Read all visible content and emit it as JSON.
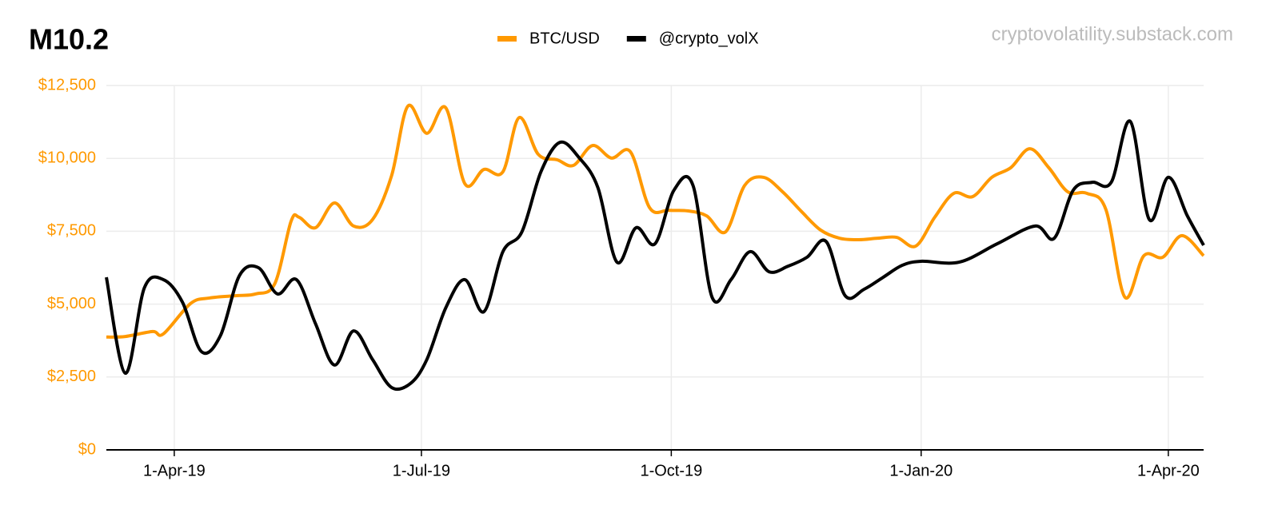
{
  "chart_data": {
    "type": "line",
    "title": "M10.2",
    "source": "cryptovolatility.substack.com",
    "xlim": [
      "7-Mar-19",
      "14-Apr-20"
    ],
    "xticks": [
      "1-Apr-19",
      "1-Jul-19",
      "1-Oct-19",
      "1-Jan-20",
      "1-Apr-20"
    ],
    "ylim": [
      0,
      12500
    ],
    "yticks": [
      {
        "value": 0,
        "label": "$0"
      },
      {
        "value": 2500,
        "label": "$2,500"
      },
      {
        "value": 5000,
        "label": "$5,000"
      },
      {
        "value": 7500,
        "label": "$7,500"
      },
      {
        "value": 10000,
        "label": "$10,000"
      },
      {
        "value": 12500,
        "label": "$12,500"
      }
    ],
    "grid": true,
    "legend": "top",
    "series": [
      {
        "name": "BTC/USD",
        "color": "#ff9900",
        "x": [
          "7-Mar-19",
          "14-Mar-19",
          "24-Mar-19",
          "28-Mar-19",
          "7-Apr-19",
          "14-Apr-19",
          "24-Apr-19",
          "1-May-19",
          "8-May-19",
          "14-May-19",
          "17-May-19",
          "23-May-19",
          "30-May-19",
          "6-Jun-19",
          "13-Jun-19",
          "20-Jun-19",
          "26-Jun-19",
          "3-Jul-19",
          "10-Jul-19",
          "17-Jul-19",
          "24-Jul-19",
          "31-Jul-19",
          "6-Aug-19",
          "13-Aug-19",
          "20-Aug-19",
          "26-Aug-19",
          "2-Sep-19",
          "9-Sep-19",
          "16-Sep-19",
          "23-Sep-19",
          "30-Sep-19",
          "7-Oct-19",
          "14-Oct-19",
          "21-Oct-19",
          "28-Oct-19",
          "4-Nov-19",
          "11-Nov-19",
          "18-Nov-19",
          "25-Nov-19",
          "2-Dec-19",
          "9-Dec-19",
          "16-Dec-19",
          "23-Dec-19",
          "30-Dec-19",
          "6-Jan-20",
          "13-Jan-20",
          "20-Jan-20",
          "27-Jan-20",
          "3-Feb-20",
          "10-Feb-20",
          "17-Feb-20",
          "24-Feb-20",
          "2-Mar-20",
          "9-Mar-20",
          "16-Mar-20",
          "23-Mar-20",
          "30-Mar-20",
          "6-Apr-20",
          "14-Apr-20"
        ],
        "values": [
          3870,
          3890,
          4060,
          3980,
          5020,
          5210,
          5290,
          5350,
          5700,
          7840,
          7980,
          7620,
          8470,
          7680,
          7900,
          9400,
          11790,
          10860,
          11730,
          9130,
          9620,
          9540,
          11400,
          10140,
          9950,
          9760,
          10440,
          10010,
          10220,
          8310,
          8220,
          8200,
          8030,
          7480,
          9070,
          9350,
          8850,
          8170,
          7540,
          7260,
          7210,
          7260,
          7290,
          6990,
          7980,
          8800,
          8690,
          9350,
          9680,
          10330,
          9680,
          8850,
          8800,
          8250,
          5240,
          6660,
          6610,
          7350,
          6660
        ]
      },
      {
        "name": "@crypto_volX",
        "color": "#000000",
        "x": [
          "7-Mar-19",
          "14-Mar-19",
          "21-Mar-19",
          "28-Mar-19",
          "4-Apr-19",
          "11-Apr-19",
          "18-Apr-19",
          "25-Apr-19",
          "2-May-19",
          "9-May-19",
          "16-May-19",
          "23-May-19",
          "30-May-19",
          "6-Jun-19",
          "13-Jun-19",
          "20-Jun-19",
          "27-Jun-19",
          "3-Jul-19",
          "10-Jul-19",
          "17-Jul-19",
          "24-Jul-19",
          "31-Jul-19",
          "7-Aug-19",
          "14-Aug-19",
          "21-Aug-19",
          "28-Aug-19",
          "4-Sep-19",
          "11-Sep-19",
          "18-Sep-19",
          "25-Sep-19",
          "2-Oct-19",
          "9-Oct-19",
          "16-Oct-19",
          "23-Oct-19",
          "30-Oct-19",
          "6-Nov-19",
          "13-Nov-19",
          "20-Nov-19",
          "27-Nov-19",
          "4-Dec-19",
          "11-Dec-19",
          "18-Dec-19",
          "25-Dec-19",
          "1-Jan-20",
          "15-Jan-20",
          "29-Jan-20",
          "12-Feb-20",
          "19-Feb-20",
          "26-Feb-20",
          "4-Mar-20",
          "11-Mar-20",
          "18-Mar-20",
          "25-Mar-20",
          "1-Apr-20",
          "8-Apr-20",
          "14-Apr-20"
        ],
        "values": [
          5920,
          2630,
          5560,
          5840,
          5070,
          3370,
          3920,
          5980,
          6250,
          5350,
          5840,
          4330,
          2910,
          4080,
          3100,
          2140,
          2280,
          3100,
          4880,
          5840,
          4740,
          6800,
          7480,
          9540,
          10550,
          10030,
          8990,
          6440,
          7620,
          7070,
          8910,
          9070,
          5240,
          5840,
          6800,
          6110,
          6300,
          6610,
          7150,
          5290,
          5510,
          5920,
          6330,
          6470,
          6440,
          7070,
          7680,
          7260,
          8910,
          9180,
          9180,
          11270,
          7900,
          9350,
          8030,
          7020
        ]
      }
    ]
  }
}
